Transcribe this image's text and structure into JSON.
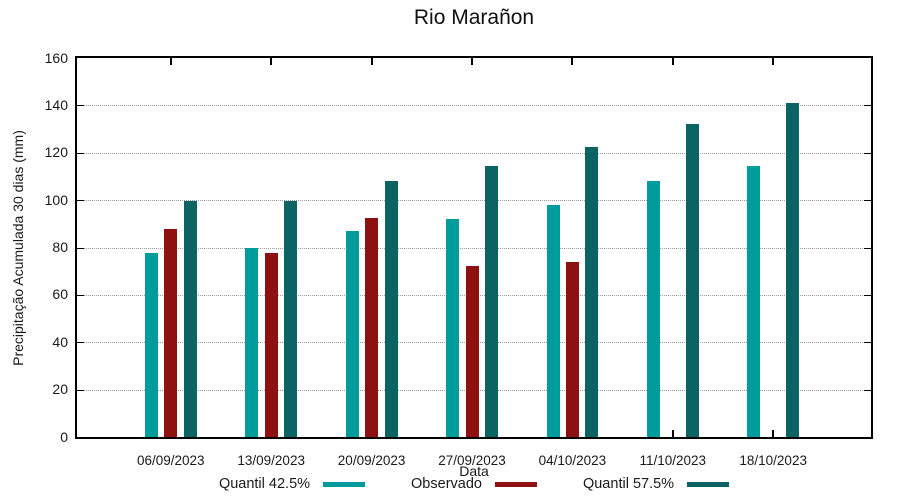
{
  "title": "Rio Marañon",
  "y_axis": {
    "label": "Precipitação Acumulada 30 dias (mm)",
    "ticks": [
      0,
      20,
      40,
      60,
      80,
      100,
      120,
      140,
      160
    ]
  },
  "x_axis": {
    "label": "Data"
  },
  "colors": {
    "quantil_42_5": "#009C9C",
    "observado": "#8E1010",
    "quantil_57_5": "#0C6363",
    "grid": "#999999",
    "border": "#000000",
    "text": "#1A1A1A",
    "background": "#FFFFFF"
  },
  "chart_data": {
    "type": "bar",
    "title": "Rio Marañon",
    "xlabel": "Data",
    "ylabel": "Precipitação Acumulada 30 dias (mm)",
    "ylim": [
      0,
      160
    ],
    "y_tick_step": 20,
    "grid": "horizontal-dotted",
    "legend_position": "bottom",
    "categories": [
      "06/09/2023",
      "13/09/2023",
      "20/09/2023",
      "27/09/2023",
      "04/10/2023",
      "11/10/2023",
      "18/10/2023"
    ],
    "series": [
      {
        "name": "Quantil 42.5%",
        "color": "#009C9C",
        "values": [
          77.5,
          80,
          87,
          92,
          98,
          108,
          114.5
        ]
      },
      {
        "name": "Observado",
        "color": "#8E1010",
        "values": [
          88,
          77.5,
          92.5,
          72,
          74,
          null,
          null
        ]
      },
      {
        "name": "Quantil 57.5%",
        "color": "#0C6363",
        "values": [
          99.5,
          99.5,
          108,
          114.5,
          122.5,
          132,
          141
        ]
      }
    ]
  }
}
